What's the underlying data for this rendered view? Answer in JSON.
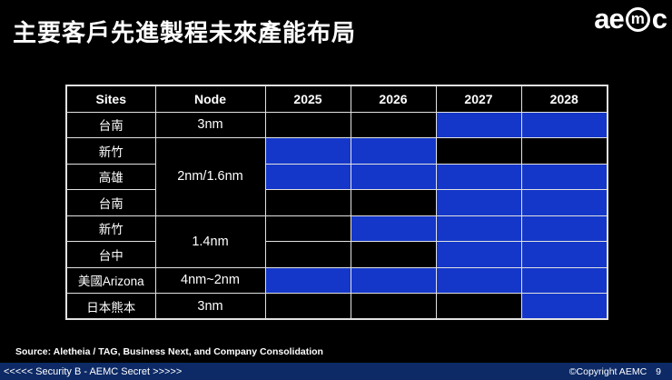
{
  "slide": {
    "title": "主要客戶先進製程未來產能布局",
    "logo": {
      "prefix": "ae",
      "circled": "m",
      "suffix": "c"
    },
    "source": "Source: Aletheia / TAG, Business Next, and Company Consolidation",
    "footer": {
      "security": "<<<<< Security B - AEMC Secret >>>>>",
      "copyright": "©Copyright AEMC",
      "page": "9"
    }
  },
  "table": {
    "columns": [
      "Sites",
      "Node",
      "2025",
      "2026",
      "2027",
      "2028"
    ],
    "rows": [
      {
        "site": "台南",
        "node": "3nm",
        "node_rowspan": 1,
        "years": [
          false,
          false,
          true,
          true
        ]
      },
      {
        "site": "新竹",
        "node": "2nm/1.6nm",
        "node_rowspan": 3,
        "years": [
          true,
          true,
          false,
          false
        ]
      },
      {
        "site": "高雄",
        "node": null,
        "node_rowspan": 0,
        "years": [
          true,
          true,
          true,
          true
        ]
      },
      {
        "site": "台南",
        "node": null,
        "node_rowspan": 0,
        "years": [
          false,
          false,
          true,
          true
        ]
      },
      {
        "site": "新竹",
        "node": "1.4nm",
        "node_rowspan": 2,
        "years": [
          false,
          true,
          true,
          true
        ]
      },
      {
        "site": "台中",
        "node": null,
        "node_rowspan": 0,
        "years": [
          false,
          false,
          true,
          true
        ]
      },
      {
        "site": "美國Arizona",
        "node": "4nm~2nm",
        "node_rowspan": 1,
        "years": [
          true,
          true,
          true,
          true
        ]
      },
      {
        "site": "日本熊本",
        "node": "3nm",
        "node_rowspan": 1,
        "years": [
          false,
          false,
          false,
          true
        ]
      }
    ]
  },
  "colors": {
    "background": "#000000",
    "text": "#ffffff",
    "cell_blue": "#1437c9",
    "cell_black": "#000000",
    "border": "#e2e2e2",
    "footer_bar": "#0d2a66"
  }
}
